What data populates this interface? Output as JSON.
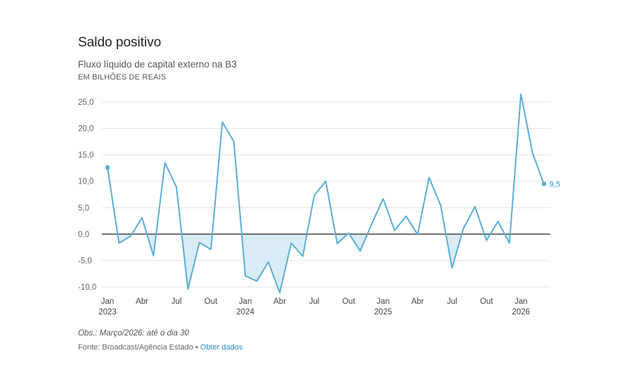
{
  "title": "Saldo positivo",
  "subtitle": "Fluxo líquido de capital externo na B3",
  "unit_label": "EM BILHÕES DE REAIS",
  "note": "Obs.: Março/2026: até o dia 30",
  "source": {
    "text": "Fonte: Broadcast/Agência Estado",
    "separator": " • ",
    "link_label": "Obter dados"
  },
  "colors": {
    "line": "#5aaed6",
    "area": "#cde6f3",
    "zero_line": "#222222",
    "grid": "#e3e3e3",
    "axis_text": "#666666"
  },
  "chart_data": {
    "type": "line",
    "title": "Saldo positivo",
    "ylabel": "EM BILHÕES DE REAIS",
    "ylim": [
      -10,
      25
    ],
    "yticks": [
      25,
      20,
      15,
      10,
      5,
      0,
      -5,
      -10
    ],
    "ytick_labels": [
      "25,0",
      "20,0",
      "15,0",
      "10,0",
      "5,0",
      "0,0",
      "-5,0",
      "-10,0"
    ],
    "xticks": [
      {
        "index": 0,
        "month": "Jan",
        "year": "2023"
      },
      {
        "index": 3,
        "month": "Abr",
        "year": ""
      },
      {
        "index": 6,
        "month": "Jul",
        "year": ""
      },
      {
        "index": 9,
        "month": "Out",
        "year": ""
      },
      {
        "index": 12,
        "month": "Jan",
        "year": "2024"
      },
      {
        "index": 15,
        "month": "Abr",
        "year": ""
      },
      {
        "index": 18,
        "month": "Jul",
        "year": ""
      },
      {
        "index": 21,
        "month": "Out",
        "year": ""
      },
      {
        "index": 24,
        "month": "Jan",
        "year": "2025"
      },
      {
        "index": 27,
        "month": "Abr",
        "year": ""
      },
      {
        "index": 30,
        "month": "Jul",
        "year": ""
      },
      {
        "index": 33,
        "month": "Out",
        "year": ""
      },
      {
        "index": 36,
        "month": "Jan",
        "year": "2026"
      }
    ],
    "series": [
      {
        "name": "Fluxo líquido de capital externo na B3",
        "values": [
          12.6,
          -1.7,
          -0.4,
          3.1,
          -4.1,
          13.5,
          8.9,
          -10.4,
          -1.6,
          -2.9,
          21.2,
          17.5,
          -7.9,
          -8.9,
          -5.3,
          -11.1,
          -1.7,
          -4.2,
          7.3,
          10.0,
          -1.8,
          0.2,
          -3.2,
          1.9,
          6.7,
          0.7,
          3.4,
          -0.1,
          10.7,
          5.5,
          -6.4,
          1.1,
          5.2,
          -1.2,
          2.4,
          -1.7,
          26.5,
          15.4,
          9.5
        ]
      }
    ],
    "end_label": "9,5"
  }
}
